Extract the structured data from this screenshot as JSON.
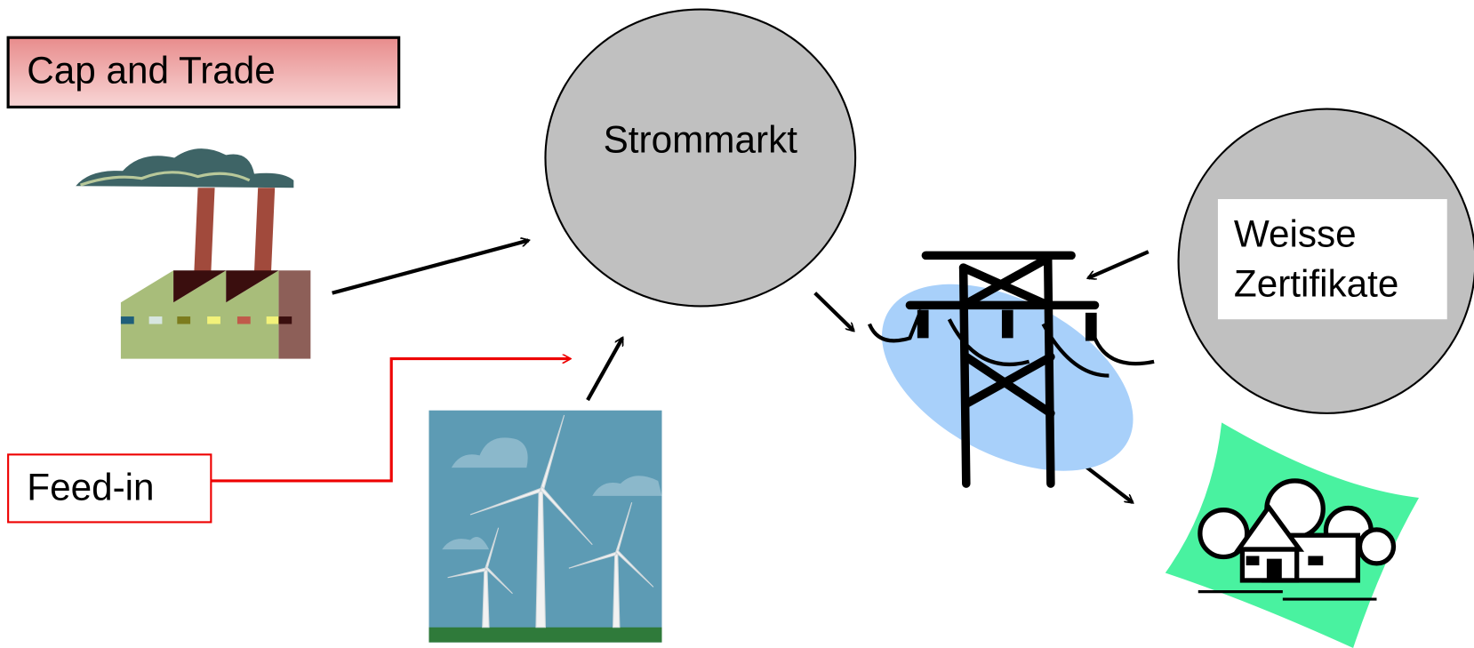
{
  "boxes": [
    {
      "label": "Cap and Trade"
    },
    {
      "label": "Feed-in"
    }
  ],
  "circles": [
    {
      "label": "Strommarkt"
    },
    {
      "label_lines": [
        "Weisse",
        "Zertifikate"
      ]
    }
  ]
}
